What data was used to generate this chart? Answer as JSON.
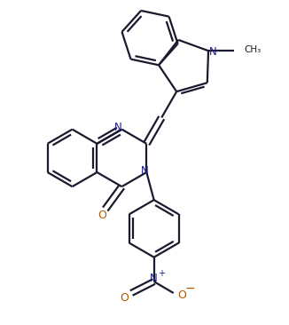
{
  "bg_color": "#ffffff",
  "bond_color": "#1a1a2e",
  "n_color": "#1a1a8a",
  "o_color": "#b35900",
  "line_width": 1.6,
  "figsize": [
    3.26,
    3.66
  ],
  "dpi": 100,
  "xlim": [
    0,
    9.5
  ],
  "ylim": [
    0,
    10.7
  ]
}
